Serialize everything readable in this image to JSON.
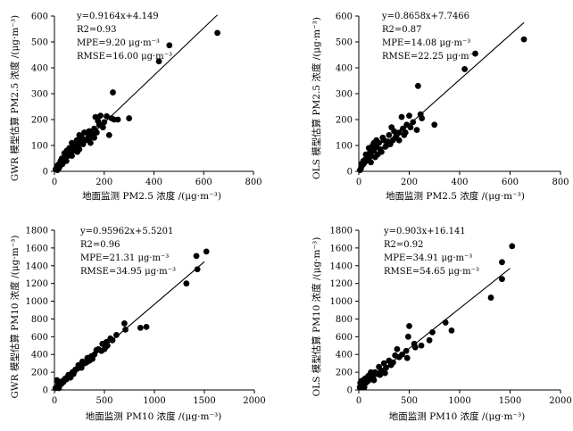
{
  "chart_data": [
    {
      "type": "scatter",
      "panel": "top-left",
      "xlabel": "地面监测 PM2.5 浓度 /(μg·m⁻³)",
      "ylabel": "GWR 模型估算 PM2.5 浓度 /(μg·m⁻³)",
      "xlim": [
        0,
        800
      ],
      "ylim": [
        0,
        600
      ],
      "xticks": [
        0,
        200,
        400,
        600,
        800
      ],
      "yticks": [
        0,
        100,
        200,
        300,
        400,
        500,
        600
      ],
      "annotations": [
        "y=0.9164x+4.149",
        "R2=0.93",
        "MPE=9.20 μg·m⁻³",
        "RMSE=16.00 μg·m⁻³"
      ],
      "fit": {
        "slope": 0.9164,
        "intercept": 4.149,
        "x_range": [
          0,
          655
        ]
      },
      "points": [
        [
          655,
          535
        ],
        [
          462,
          487
        ],
        [
          420,
          425
        ],
        [
          235,
          305
        ],
        [
          230,
          205
        ],
        [
          300,
          205
        ],
        [
          185,
          215
        ],
        [
          210,
          213
        ],
        [
          165,
          210
        ],
        [
          240,
          200
        ],
        [
          195,
          170
        ],
        [
          180,
          180
        ],
        [
          220,
          140
        ],
        [
          150,
          145
        ],
        [
          130,
          150
        ],
        [
          140,
          125
        ],
        [
          120,
          150
        ],
        [
          110,
          130
        ],
        [
          100,
          140
        ],
        [
          105,
          110
        ],
        [
          90,
          120
        ],
        [
          80,
          100
        ],
        [
          70,
          110
        ],
        [
          60,
          90
        ],
        [
          50,
          80
        ],
        [
          40,
          70
        ],
        [
          45,
          55
        ],
        [
          30,
          50
        ],
        [
          25,
          40
        ],
        [
          20,
          30
        ],
        [
          15,
          25
        ],
        [
          10,
          20
        ],
        [
          8,
          12
        ],
        [
          5,
          8
        ],
        [
          35,
          35
        ],
        [
          55,
          60
        ],
        [
          65,
          70
        ],
        [
          75,
          80
        ],
        [
          85,
          90
        ],
        [
          95,
          95
        ],
        [
          115,
          105
        ],
        [
          125,
          120
        ],
        [
          135,
          130
        ],
        [
          160,
          165
        ],
        [
          170,
          150
        ],
        [
          200,
          190
        ],
        [
          160,
          130
        ],
        [
          140,
          155
        ],
        [
          110,
          115
        ],
        [
          100,
          85
        ],
        [
          88,
          100
        ],
        [
          72,
          90
        ],
        [
          62,
          75
        ],
        [
          52,
          65
        ],
        [
          42,
          45
        ],
        [
          32,
          28
        ],
        [
          22,
          20
        ],
        [
          18,
          12
        ],
        [
          12,
          5
        ],
        [
          28,
          45
        ],
        [
          48,
          40
        ],
        [
          70,
          60
        ],
        [
          92,
          75
        ],
        [
          145,
          110
        ],
        [
          175,
          195
        ],
        [
          255,
          200
        ]
      ]
    },
    {
      "type": "scatter",
      "panel": "top-right",
      "xlabel": "地面监测 PM2.5 浓度 /(μg·m⁻³)",
      "ylabel": "OLS 模型估算 PM2.5 浓度 /(μg·m⁻³)",
      "xlim": [
        0,
        800
      ],
      "ylim": [
        0,
        600
      ],
      "xticks": [
        0,
        200,
        400,
        600,
        800
      ],
      "yticks": [
        0,
        100,
        200,
        300,
        400,
        500,
        600
      ],
      "annotations": [
        "y=0.8658x+7.7466",
        "R2=0.87",
        "MPE=14.08 μg·m⁻³",
        "RMSE=22.25 μg·m⁻³"
      ],
      "fit": {
        "slope": 0.8658,
        "intercept": 7.7466,
        "x_range": [
          0,
          655
        ]
      },
      "points": [
        [
          655,
          510
        ],
        [
          462,
          455
        ],
        [
          420,
          395
        ],
        [
          235,
          330
        ],
        [
          300,
          180
        ],
        [
          250,
          205
        ],
        [
          200,
          215
        ],
        [
          190,
          180
        ],
        [
          230,
          160
        ],
        [
          170,
          210
        ],
        [
          140,
          155
        ],
        [
          150,
          140
        ],
        [
          130,
          170
        ],
        [
          120,
          140
        ],
        [
          100,
          120
        ],
        [
          110,
          100
        ],
        [
          95,
          130
        ],
        [
          80,
          110
        ],
        [
          70,
          95
        ],
        [
          60,
          80
        ],
        [
          55,
          100
        ],
        [
          50,
          60
        ],
        [
          45,
          75
        ],
        [
          40,
          50
        ],
        [
          35,
          60
        ],
        [
          30,
          40
        ],
        [
          25,
          45
        ],
        [
          20,
          30
        ],
        [
          15,
          25
        ],
        [
          10,
          18
        ],
        [
          8,
          10
        ],
        [
          5,
          5
        ],
        [
          65,
          55
        ],
        [
          85,
          85
        ],
        [
          90,
          75
        ],
        [
          105,
          95
        ],
        [
          115,
          115
        ],
        [
          125,
          105
        ],
        [
          135,
          120
        ],
        [
          145,
          130
        ],
        [
          160,
          150
        ],
        [
          175,
          165
        ],
        [
          185,
          150
        ],
        [
          215,
          190
        ],
        [
          245,
          220
        ],
        [
          70,
          120
        ],
        [
          60,
          110
        ],
        [
          40,
          90
        ],
        [
          28,
          65
        ],
        [
          18,
          40
        ],
        [
          12,
          30
        ],
        [
          48,
          35
        ],
        [
          75,
          65
        ],
        [
          160,
          120
        ],
        [
          205,
          170
        ],
        [
          180,
          140
        ]
      ]
    },
    {
      "type": "scatter",
      "panel": "bottom-left",
      "xlabel": "地面监测 PM10 浓度 /(μg·m⁻³)",
      "ylabel": "GWR 模型估算 PM10 浓度 /(μg·m⁻³)",
      "xlim": [
        0,
        2000
      ],
      "ylim": [
        0,
        1800
      ],
      "xticks": [
        0,
        500,
        1000,
        1500,
        2000
      ],
      "yticks": [
        0,
        200,
        400,
        600,
        800,
        1000,
        1200,
        1400,
        1600,
        1800
      ],
      "annotations": [
        "y=0.95962x+5.5201",
        "R2=0.96",
        "MPE=21.31 μg·m⁻³",
        "RMSE=34.95 μg·m⁻³"
      ],
      "fit": {
        "slope": 0.95962,
        "intercept": 5.5201,
        "x_range": [
          0,
          1500
        ]
      },
      "points": [
        [
          1520,
          1560
        ],
        [
          1420,
          1510
        ],
        [
          1430,
          1360
        ],
        [
          1320,
          1200
        ],
        [
          920,
          710
        ],
        [
          860,
          700
        ],
        [
          700,
          750
        ],
        [
          710,
          680
        ],
        [
          620,
          620
        ],
        [
          580,
          560
        ],
        [
          520,
          540
        ],
        [
          510,
          480
        ],
        [
          470,
          440
        ],
        [
          420,
          450
        ],
        [
          400,
          400
        ],
        [
          370,
          380
        ],
        [
          350,
          330
        ],
        [
          330,
          360
        ],
        [
          300,
          300
        ],
        [
          280,
          320
        ],
        [
          260,
          260
        ],
        [
          240,
          280
        ],
        [
          230,
          240
        ],
        [
          200,
          210
        ],
        [
          180,
          200
        ],
        [
          170,
          170
        ],
        [
          150,
          160
        ],
        [
          130,
          140
        ],
        [
          120,
          120
        ],
        [
          100,
          110
        ],
        [
          90,
          90
        ],
        [
          80,
          100
        ],
        [
          70,
          70
        ],
        [
          60,
          80
        ],
        [
          50,
          50
        ],
        [
          40,
          60
        ],
        [
          30,
          40
        ],
        [
          20,
          30
        ],
        [
          10,
          20
        ],
        [
          480,
          520
        ],
        [
          560,
          580
        ],
        [
          530,
          500
        ],
        [
          440,
          460
        ],
        [
          380,
          350
        ],
        [
          320,
          310
        ],
        [
          270,
          250
        ],
        [
          210,
          230
        ],
        [
          190,
          180
        ],
        [
          160,
          140
        ],
        [
          140,
          170
        ],
        [
          110,
          130
        ],
        [
          65,
          85
        ],
        [
          25,
          110
        ],
        [
          35,
          90
        ],
        [
          45,
          20
        ],
        [
          500,
          460
        ]
      ]
    },
    {
      "type": "scatter",
      "panel": "bottom-right",
      "xlabel": "地面监测 PM10 浓度 /(μg·m⁻³)",
      "ylabel": "OLS 模型估算 PM10 浓度 /(μg·m⁻³)",
      "xlim": [
        0,
        2000
      ],
      "ylim": [
        0,
        1800
      ],
      "xticks": [
        0,
        500,
        1000,
        1500,
        2000
      ],
      "yticks": [
        0,
        200,
        400,
        600,
        800,
        1000,
        1200,
        1400,
        1600,
        1800
      ],
      "annotations": [
        "y=0.903x+16.141",
        "R2=0.92",
        "MPE=34.91 μg·m⁻³",
        "RMSE=54.65 μg·m⁻³"
      ],
      "fit": {
        "slope": 0.903,
        "intercept": 16.141,
        "x_range": [
          0,
          1500
        ]
      },
      "points": [
        [
          1520,
          1620
        ],
        [
          1420,
          1440
        ],
        [
          1420,
          1250
        ],
        [
          1310,
          1040
        ],
        [
          860,
          760
        ],
        [
          920,
          670
        ],
        [
          730,
          650
        ],
        [
          700,
          560
        ],
        [
          620,
          500
        ],
        [
          550,
          520
        ],
        [
          500,
          720
        ],
        [
          490,
          600
        ],
        [
          470,
          440
        ],
        [
          430,
          400
        ],
        [
          400,
          370
        ],
        [
          360,
          390
        ],
        [
          340,
          310
        ],
        [
          320,
          280
        ],
        [
          300,
          330
        ],
        [
          270,
          250
        ],
        [
          250,
          300
        ],
        [
          220,
          220
        ],
        [
          200,
          260
        ],
        [
          180,
          180
        ],
        [
          160,
          200
        ],
        [
          140,
          140
        ],
        [
          130,
          160
        ],
        [
          110,
          120
        ],
        [
          100,
          140
        ],
        [
          90,
          100
        ],
        [
          80,
          110
        ],
        [
          70,
          80
        ],
        [
          60,
          90
        ],
        [
          50,
          60
        ],
        [
          40,
          70
        ],
        [
          30,
          40
        ],
        [
          20,
          50
        ],
        [
          10,
          30
        ],
        [
          480,
          360
        ],
        [
          560,
          480
        ],
        [
          380,
          460
        ],
        [
          260,
          190
        ],
        [
          210,
          170
        ],
        [
          150,
          110
        ],
        [
          120,
          200
        ],
        [
          95,
          160
        ],
        [
          65,
          130
        ],
        [
          45,
          110
        ],
        [
          35,
          90
        ],
        [
          25,
          100
        ],
        [
          15,
          80
        ],
        [
          55,
          30
        ]
      ]
    }
  ]
}
